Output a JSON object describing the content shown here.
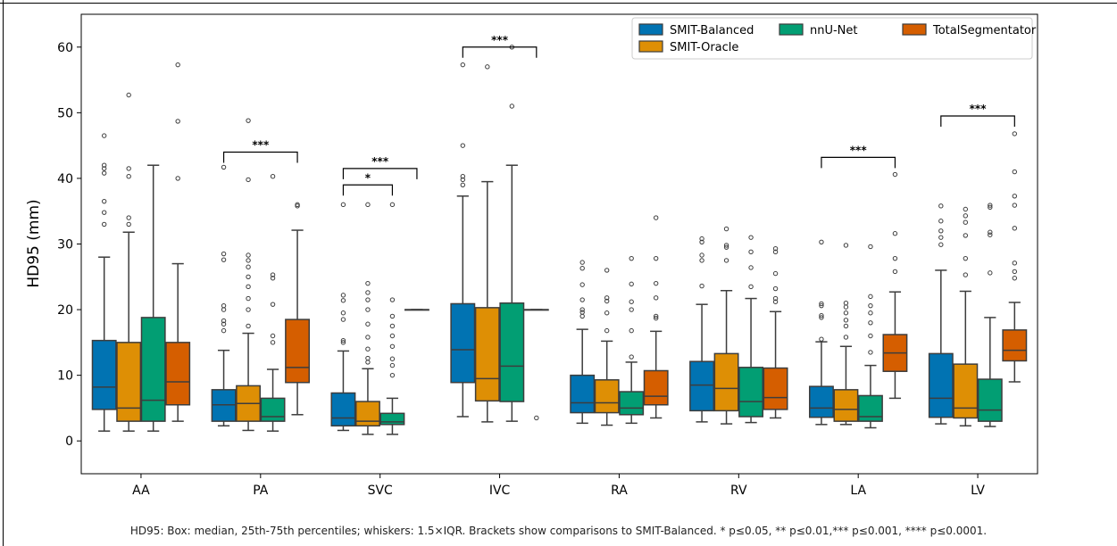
{
  "caption": "HD95: Box: median, 25th-75th percentiles; whiskers: 1.5×IQR. Brackets show comparisons to SMIT-Balanced. * p≤0.05, ** p≤0.01,*** p≤0.001, **** p≤0.0001.",
  "chart_data": {
    "type": "box",
    "ylabel": "HD95 (mm)",
    "xlabel": "",
    "ylim": [
      -5,
      65
    ],
    "yticks": [
      0,
      10,
      20,
      30,
      40,
      50,
      60
    ],
    "grid": false,
    "legend": {
      "placement": "top-right"
    },
    "categories": [
      "AA",
      "PA",
      "SVC",
      "IVC",
      "RA",
      "RV",
      "LA",
      "LV"
    ],
    "series": [
      {
        "name": "SMIT-Balanced",
        "color": "#0173b2",
        "boxes": [
          {
            "q1": 4.8,
            "median": 8.2,
            "q3": 15.3,
            "whisker_low": 1.5,
            "whisker_high": 28.0,
            "outliers": [
              33.0,
              34.8,
              36.5,
              40.8,
              41.5,
              42.0,
              46.5
            ]
          },
          {
            "q1": 3.0,
            "median": 5.5,
            "q3": 7.8,
            "whisker_low": 2.3,
            "whisker_high": 13.8,
            "outliers": [
              16.8,
              17.8,
              18.3,
              20.0,
              20.6,
              27.6,
              28.5,
              41.7
            ]
          },
          {
            "q1": 2.3,
            "median": 3.5,
            "q3": 7.3,
            "whisker_low": 1.6,
            "whisker_high": 13.7,
            "outliers": [
              15.0,
              15.3,
              18.5,
              19.5,
              21.4,
              22.2,
              36.0
            ]
          },
          {
            "q1": 8.9,
            "median": 13.9,
            "q3": 20.9,
            "whisker_low": 3.7,
            "whisker_high": 37.3,
            "outliers": [
              39.0,
              39.8,
              40.3,
              45.0,
              57.3
            ]
          },
          {
            "q1": 4.3,
            "median": 5.8,
            "q3": 10.0,
            "whisker_low": 2.7,
            "whisker_high": 17.0,
            "outliers": [
              19.0,
              19.6,
              20.0,
              21.5,
              23.8,
              26.3,
              27.2
            ]
          },
          {
            "q1": 4.6,
            "median": 8.5,
            "q3": 12.1,
            "whisker_low": 2.9,
            "whisker_high": 20.8,
            "outliers": [
              23.6,
              27.5,
              28.3,
              30.3,
              30.8
            ]
          },
          {
            "q1": 3.6,
            "median": 5.0,
            "q3": 8.3,
            "whisker_low": 2.5,
            "whisker_high": 15.1,
            "outliers": [
              15.5,
              18.8,
              19.1,
              20.6,
              20.9,
              30.3
            ]
          },
          {
            "q1": 3.6,
            "median": 6.5,
            "q3": 13.3,
            "whisker_low": 2.6,
            "whisker_high": 26.0,
            "outliers": [
              29.9,
              31.0,
              32.0,
              33.5,
              35.8
            ]
          }
        ]
      },
      {
        "name": "SMIT-Oracle",
        "color": "#de8f05",
        "boxes": [
          {
            "q1": 3.0,
            "median": 5.0,
            "q3": 15.0,
            "whisker_low": 1.5,
            "whisker_high": 31.8,
            "outliers": [
              33.0,
              34.0,
              40.3,
              41.5,
              52.7
            ]
          },
          {
            "q1": 3.0,
            "median": 5.7,
            "q3": 8.4,
            "whisker_low": 1.6,
            "whisker_high": 16.4,
            "outliers": [
              17.5,
              20.0,
              21.7,
              23.5,
              25.0,
              26.5,
              27.5,
              28.3,
              39.8,
              48.8
            ]
          },
          {
            "q1": 2.3,
            "median": 3.0,
            "q3": 6.0,
            "whisker_low": 1.0,
            "whisker_high": 11.0,
            "outliers": [
              12.0,
              12.6,
              14.0,
              15.8,
              17.8,
              20.0,
              21.5,
              22.6,
              24.0,
              36.0
            ]
          },
          {
            "q1": 6.1,
            "median": 9.5,
            "q3": 20.3,
            "whisker_low": 2.9,
            "whisker_high": 39.5,
            "outliers": [
              57.0
            ]
          },
          {
            "q1": 4.3,
            "median": 5.8,
            "q3": 9.3,
            "whisker_low": 2.4,
            "whisker_high": 15.2,
            "outliers": [
              16.8,
              19.5,
              21.3,
              21.8,
              26.0
            ]
          },
          {
            "q1": 4.6,
            "median": 8.0,
            "q3": 13.3,
            "whisker_low": 2.6,
            "whisker_high": 22.9,
            "outliers": [
              27.5,
              29.5,
              29.8,
              32.3
            ]
          },
          {
            "q1": 3.0,
            "median": 4.8,
            "q3": 7.8,
            "whisker_low": 2.5,
            "whisker_high": 14.4,
            "outliers": [
              15.8,
              17.5,
              18.4,
              19.5,
              20.4,
              21.0,
              29.8
            ]
          },
          {
            "q1": 3.5,
            "median": 5.0,
            "q3": 11.7,
            "whisker_low": 2.3,
            "whisker_high": 22.8,
            "outliers": [
              25.3,
              27.8,
              31.3,
              33.3,
              34.3,
              35.3
            ]
          }
        ]
      },
      {
        "name": "nnU-Net",
        "color": "#029e73",
        "boxes": [
          {
            "q1": 3.0,
            "median": 6.2,
            "q3": 18.8,
            "whisker_low": 1.5,
            "whisker_high": 42.0,
            "outliers": []
          },
          {
            "q1": 3.0,
            "median": 3.7,
            "q3": 6.5,
            "whisker_low": 1.5,
            "whisker_high": 10.9,
            "outliers": [
              15.0,
              16.0,
              20.8,
              24.8,
              25.3,
              40.3
            ]
          },
          {
            "q1": 2.5,
            "median": 2.9,
            "q3": 4.2,
            "whisker_low": 1.0,
            "whisker_high": 6.5,
            "outliers": [
              10.0,
              11.5,
              12.5,
              14.4,
              16.0,
              17.5,
              19.0,
              21.5,
              36.0
            ]
          },
          {
            "q1": 6.0,
            "median": 11.4,
            "q3": 21.0,
            "whisker_low": 3.0,
            "whisker_high": 42.0,
            "outliers": [
              51.0,
              60.0
            ]
          },
          {
            "q1": 4.0,
            "median": 5.0,
            "q3": 7.5,
            "whisker_low": 2.7,
            "whisker_high": 12.0,
            "outliers": [
              12.8,
              16.8,
              20.0,
              21.2,
              23.9,
              27.8
            ]
          },
          {
            "q1": 3.7,
            "median": 6.0,
            "q3": 11.2,
            "whisker_low": 2.8,
            "whisker_high": 21.7,
            "outliers": [
              23.5,
              26.4,
              28.8,
              31.0
            ]
          },
          {
            "q1": 3.0,
            "median": 3.7,
            "q3": 6.9,
            "whisker_low": 2.0,
            "whisker_high": 11.5,
            "outliers": [
              13.5,
              16.0,
              18.0,
              19.5,
              20.6,
              22.0,
              29.6
            ]
          },
          {
            "q1": 3.0,
            "median": 4.7,
            "q3": 9.4,
            "whisker_low": 2.2,
            "whisker_high": 18.8,
            "outliers": [
              25.6,
              31.4,
              31.8,
              35.6,
              35.9
            ]
          }
        ]
      },
      {
        "name": "TotalSegmentator",
        "color": "#d55e00",
        "boxes": [
          {
            "q1": 5.5,
            "median": 9.0,
            "q3": 15.0,
            "whisker_low": 3.0,
            "whisker_high": 27.0,
            "outliers": [
              40.0,
              48.7,
              57.3
            ]
          },
          {
            "q1": 8.9,
            "median": 11.2,
            "q3": 18.5,
            "whisker_low": 4.0,
            "whisker_high": 32.1,
            "outliers": [
              35.8,
              36.0
            ]
          },
          {
            "q1": 20.0,
            "median": 20.0,
            "q3": 20.0,
            "whisker_low": 20.0,
            "whisker_high": 20.0,
            "outliers": []
          },
          {
            "q1": 20.0,
            "median": 20.0,
            "q3": 20.0,
            "whisker_low": 20.0,
            "whisker_high": 20.0,
            "outliers": [
              3.5
            ]
          },
          {
            "q1": 5.5,
            "median": 6.8,
            "q3": 10.7,
            "whisker_low": 3.5,
            "whisker_high": 16.7,
            "outliers": [
              18.7,
              19.0,
              21.8,
              24.0,
              27.8,
              34.0
            ]
          },
          {
            "q1": 4.8,
            "median": 6.6,
            "q3": 11.1,
            "whisker_low": 3.5,
            "whisker_high": 19.7,
            "outliers": [
              21.2,
              21.7,
              23.2,
              25.5,
              28.8,
              29.3
            ]
          },
          {
            "q1": 10.6,
            "median": 13.4,
            "q3": 16.2,
            "whisker_low": 6.5,
            "whisker_high": 22.7,
            "outliers": [
              25.8,
              27.8,
              31.6,
              40.6
            ]
          },
          {
            "q1": 12.2,
            "median": 13.8,
            "q3": 16.9,
            "whisker_low": 9.0,
            "whisker_high": 21.1,
            "outliers": [
              24.8,
              25.8,
              27.1,
              32.4,
              35.9,
              37.3,
              41.0,
              46.8
            ]
          }
        ]
      }
    ],
    "annotations": [
      {
        "category": "PA",
        "from_series": 0,
        "to_series": 3,
        "y": 44.0,
        "label": "***"
      },
      {
        "category": "SVC",
        "from_series": 0,
        "to_series": 3,
        "y": 41.5,
        "label": "***"
      },
      {
        "category": "SVC",
        "from_series": 0,
        "to_series": 2,
        "y": 39.0,
        "label": "*"
      },
      {
        "category": "IVC",
        "from_series": 0,
        "to_series": 3,
        "y": 60.0,
        "label": "***"
      },
      {
        "category": "LA",
        "from_series": 0,
        "to_series": 3,
        "y": 43.2,
        "label": "***"
      },
      {
        "category": "LV",
        "from_series": 0,
        "to_series": 3,
        "y": 49.5,
        "label": "***"
      }
    ]
  }
}
